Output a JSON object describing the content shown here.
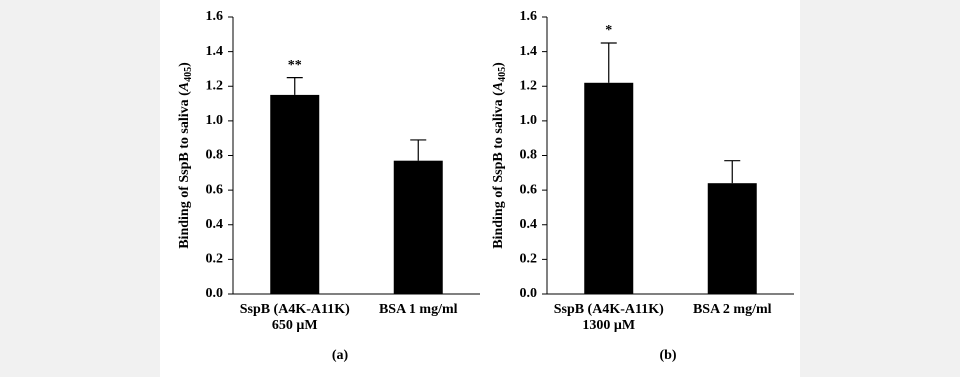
{
  "chart_data": [
    {
      "type": "bar",
      "panel_label": "(a)",
      "ylabel_prefix": "Binding of SspB to  saliva (",
      "ylabel_symbol": "A",
      "ylabel_subscript": "405",
      "ylabel_suffix": ")",
      "categories": [
        [
          "SspB (A4K-A11K)",
          "650 μM"
        ],
        [
          "BSA  1 mg/ml"
        ]
      ],
      "values": [
        1.15,
        0.77
      ],
      "errors": [
        0.1,
        0.12
      ],
      "color": "#000000",
      "annotations": [
        {
          "index": 0,
          "text": "**"
        }
      ],
      "ylim": [
        0,
        1.6
      ],
      "yticks": [
        {
          "value": 0,
          "label": "0.0"
        },
        {
          "value": 0.2,
          "label": "0.2"
        },
        {
          "value": 0.4,
          "label": "0.4"
        },
        {
          "value": 0.6,
          "label": "0.6"
        },
        {
          "value": 0.8,
          "label": "0.8"
        },
        {
          "value": 1,
          "label": "1.0"
        },
        {
          "value": 1.2,
          "label": "1.2"
        },
        {
          "value": 1.4,
          "label": "1.4"
        },
        {
          "value": 1.6,
          "label": "1.6"
        }
      ],
      "grid": false
    },
    {
      "type": "bar",
      "panel_label": "(b)",
      "ylabel_prefix": "Binding of SspB to saliva (",
      "ylabel_symbol": "A",
      "ylabel_subscript": "405",
      "ylabel_suffix": ")",
      "categories": [
        [
          "SspB (A4K-A11K)",
          "1300 μM"
        ],
        [
          "BSA  2 mg/ml"
        ]
      ],
      "values": [
        1.22,
        0.64
      ],
      "errors": [
        0.23,
        0.13
      ],
      "color": "#000000",
      "annotations": [
        {
          "index": 0,
          "text": "*"
        }
      ],
      "ylim": [
        0,
        1.6
      ],
      "yticks": [
        {
          "value": 0,
          "label": "0.0"
        },
        {
          "value": 0.2,
          "label": "0.2"
        },
        {
          "value": 0.4,
          "label": "0.4"
        },
        {
          "value": 0.6,
          "label": "0.6"
        },
        {
          "value": 0.8,
          "label": "0.8"
        },
        {
          "value": 1,
          "label": "1.0"
        },
        {
          "value": 1.2,
          "label": "1.2"
        },
        {
          "value": 1.4,
          "label": "1.4"
        },
        {
          "value": 1.6,
          "label": "1.6"
        }
      ],
      "grid": false
    }
  ]
}
